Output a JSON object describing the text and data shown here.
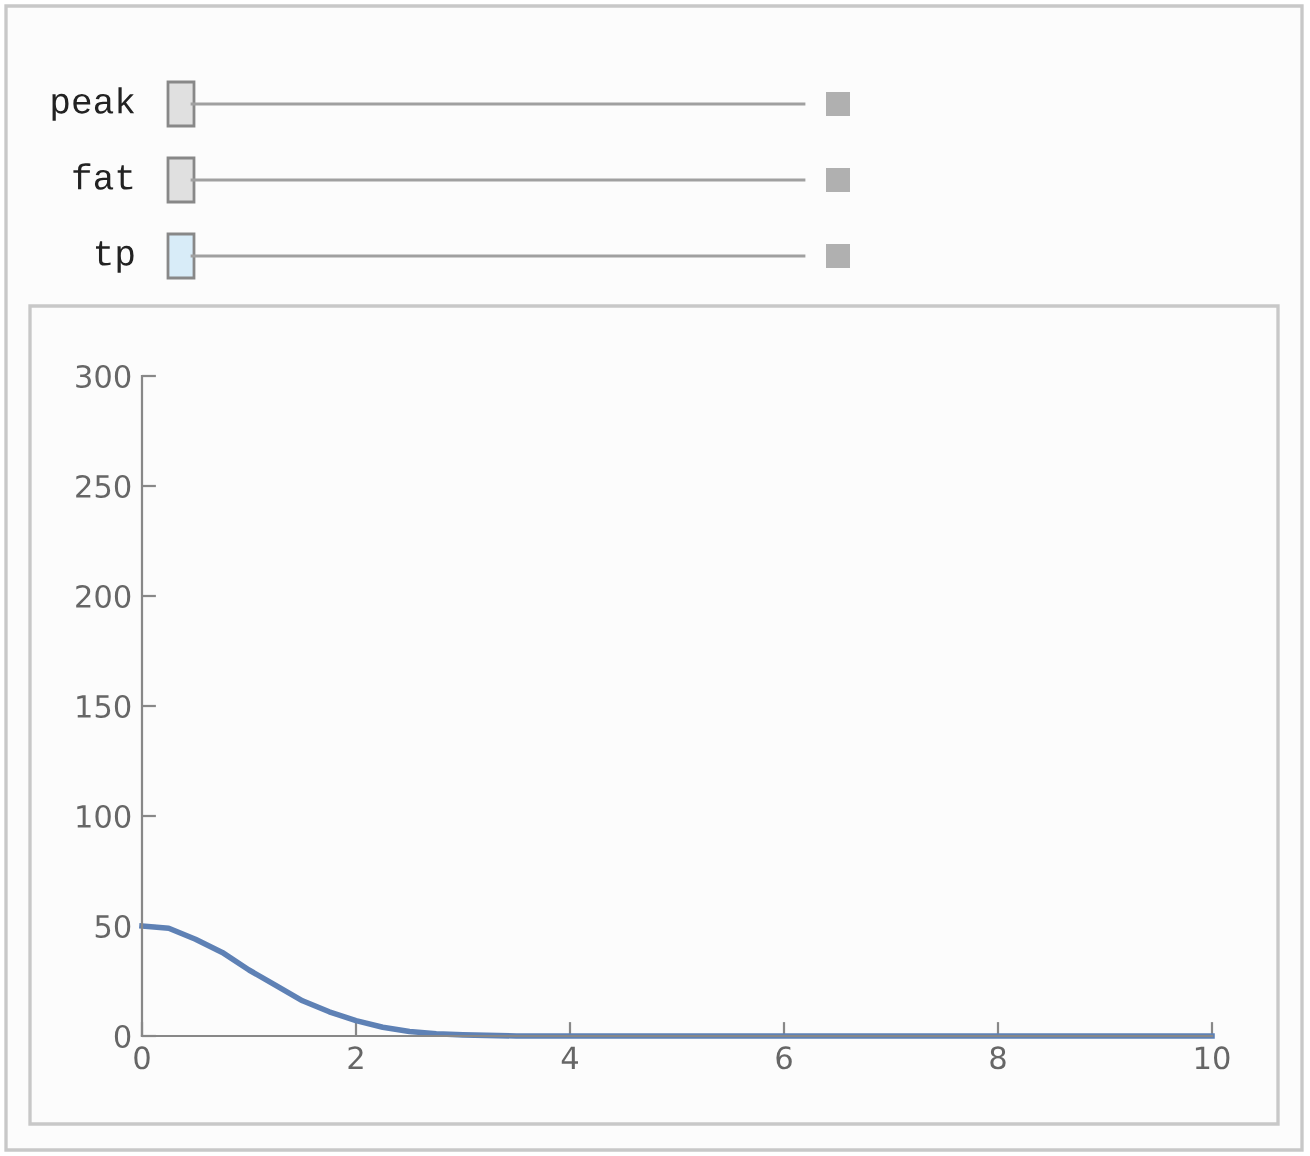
{
  "chart_data": {
    "type": "line",
    "annotations": [
      "peak",
      "fat",
      "tp"
    ],
    "x": [
      0,
      0.25,
      0.5,
      0.75,
      1,
      1.25,
      1.5,
      1.75,
      2,
      2.25,
      2.5,
      2.75,
      3,
      3.5,
      4,
      5,
      6,
      7,
      8,
      9,
      10
    ],
    "series": [
      {
        "color": "#5e81b5",
        "values": [
          50,
          49,
          44,
          38,
          30,
          23,
          16,
          11,
          7,
          4,
          2,
          1,
          0.5,
          0,
          0,
          0,
          0,
          0,
          0,
          0,
          0
        ]
      }
    ],
    "xlim": [
      0,
      10
    ],
    "ylim": [
      0,
      300
    ],
    "xticks": [
      0,
      2,
      4,
      6,
      8,
      10
    ],
    "yticks": [
      0,
      50,
      100,
      150,
      200,
      250,
      300
    ],
    "grid": false,
    "legend": false,
    "marker": "none",
    "line_style": "solid"
  }
}
